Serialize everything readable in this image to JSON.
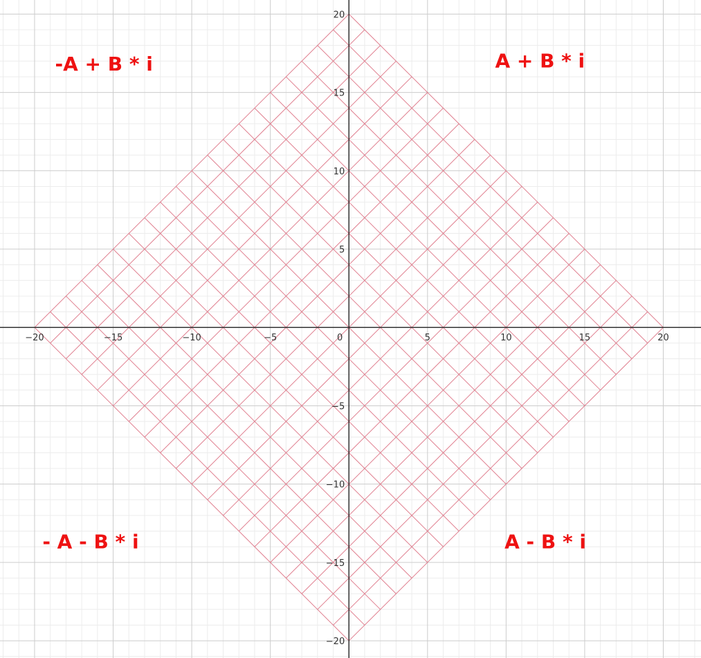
{
  "chart_data": {
    "type": "line",
    "title": "",
    "xlabel": "",
    "ylabel": "",
    "xlim": [
      -22.2,
      22.4
    ],
    "ylim": [
      -21.1,
      20.9
    ],
    "x_ticks": [
      {
        "value": -20,
        "label": "−20"
      },
      {
        "value": -15,
        "label": "−15"
      },
      {
        "value": -10,
        "label": "−10"
      },
      {
        "value": -5,
        "label": "−5"
      },
      {
        "value": 5,
        "label": "5"
      },
      {
        "value": 10,
        "label": "10"
      },
      {
        "value": 15,
        "label": "15"
      },
      {
        "value": 20,
        "label": "20"
      }
    ],
    "y_ticks": [
      {
        "value": -20,
        "label": "−20"
      },
      {
        "value": -15,
        "label": "−15"
      },
      {
        "value": -10,
        "label": "−10"
      },
      {
        "value": -5,
        "label": "−5"
      },
      {
        "value": 5,
        "label": "5"
      },
      {
        "value": 10,
        "label": "10"
      },
      {
        "value": 15,
        "label": "15"
      },
      {
        "value": 20,
        "label": "20"
      }
    ],
    "origin_label": "0",
    "grid": {
      "major_step": 5,
      "minor_step": 1,
      "shown": true
    },
    "lattice": {
      "description_values": "lines |x| + |y| <= 20 rotated 45 degrees",
      "diagonal_spacing": 2,
      "extent": 20
    },
    "annotations": [
      {
        "text": "-A + B * i",
        "x": -18.7,
        "y": 16.4
      },
      {
        "text": "A + B * i",
        "x": 9.3,
        "y": 16.6
      },
      {
        "text": "- A - B * i",
        "x": -19.5,
        "y": -14.1
      },
      {
        "text": "A - B * i",
        "x": 9.9,
        "y": -14.1
      }
    ]
  },
  "colors": {
    "minor_grid": "#ececec",
    "major_grid": "#cccccc",
    "axis": "#333333",
    "lattice": "#e08090",
    "annotation": "#ee1111",
    "tick_text": "#333333"
  }
}
